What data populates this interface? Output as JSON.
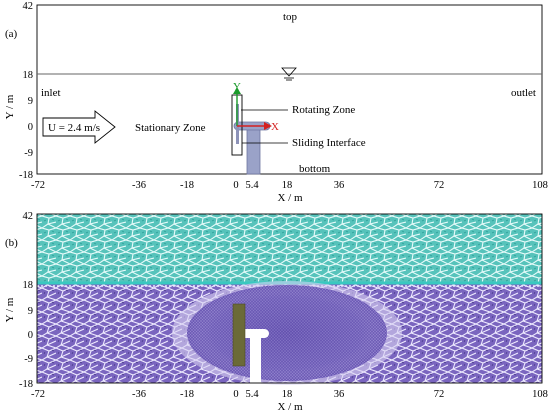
{
  "panel_a": {
    "tag": "(a)",
    "ylabel": "Y / m",
    "xlabel": "X / m",
    "x_ticks": [
      "-72",
      "-36",
      "-18",
      "0",
      "5.4",
      "18",
      "36",
      "72",
      "108"
    ],
    "y_ticks": [
      "42",
      "18",
      "9",
      "0",
      "-9",
      "-18"
    ],
    "labels": {
      "top": "top",
      "inlet": "inlet",
      "outlet": "outlet",
      "bottom": "bottom",
      "stationary": "Stationary Zone",
      "rotating": "Rotating Zone",
      "sliding": "Sliding Interface",
      "velocity": "U = 2.4 m/s",
      "axis_y": "Y",
      "axis_x": "X"
    },
    "colors": {
      "axis_y": "#1a9a2a",
      "axis_x": "#d42020",
      "blade": "#9aa2c8"
    }
  },
  "panel_b": {
    "tag": "(b)",
    "ylabel": "Y / m",
    "xlabel": "X / m",
    "x_ticks": [
      "-72",
      "-36",
      "-18",
      "0",
      "5.4",
      "18",
      "36",
      "72",
      "108"
    ],
    "y_ticks": [
      "42",
      "18",
      "9",
      "0",
      "-9",
      "-18"
    ],
    "colors": {
      "water_mesh": "#6a58b0",
      "air_mesh": "#4fc2bb",
      "blade": "#6b6a38"
    }
  }
}
